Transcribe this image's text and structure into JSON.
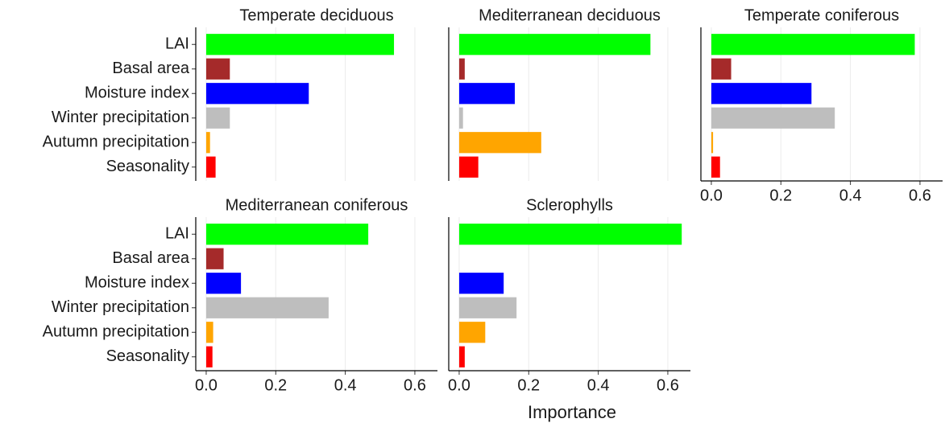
{
  "chart_data": {
    "type": "bar",
    "orientation": "horizontal",
    "categories": [
      "LAI",
      "Basal area",
      "Moisture index",
      "Winter precipitation",
      "Autumn precipitation",
      "Seasonality"
    ],
    "colors": [
      "#00ff00",
      "#a52a2a",
      "#0000ff",
      "#bebebe",
      "#ffa500",
      "#ff0000"
    ],
    "x_label": "Importance",
    "xlim": [
      -0.03,
      0.665
    ],
    "xticks": [
      {
        "value": 0,
        "label": "0.0"
      },
      {
        "value": 0.2,
        "label": "0.2"
      },
      {
        "value": 0.4,
        "label": "0.4"
      },
      {
        "value": 0.6,
        "label": "0.6"
      }
    ],
    "grid": true,
    "facets": [
      {
        "title": "Temperate deciduous",
        "values": [
          0.54,
          0.068,
          0.295,
          0.068,
          0.011,
          0.027
        ]
      },
      {
        "title": "Mediterranean deciduous",
        "values": [
          0.55,
          0.016,
          0.16,
          0.011,
          0.236,
          0.055
        ]
      },
      {
        "title": "Temperate coniferous",
        "values": [
          0.585,
          0.057,
          0.288,
          0.355,
          0.005,
          0.025
        ]
      },
      {
        "title": "Mediterranean coniferous",
        "values": [
          0.466,
          0.05,
          0.1,
          0.352,
          0.02,
          0.018
        ]
      },
      {
        "title": "Sclerophylls",
        "values": [
          0.64,
          null,
          0.128,
          0.165,
          0.075,
          0.016
        ]
      }
    ]
  }
}
